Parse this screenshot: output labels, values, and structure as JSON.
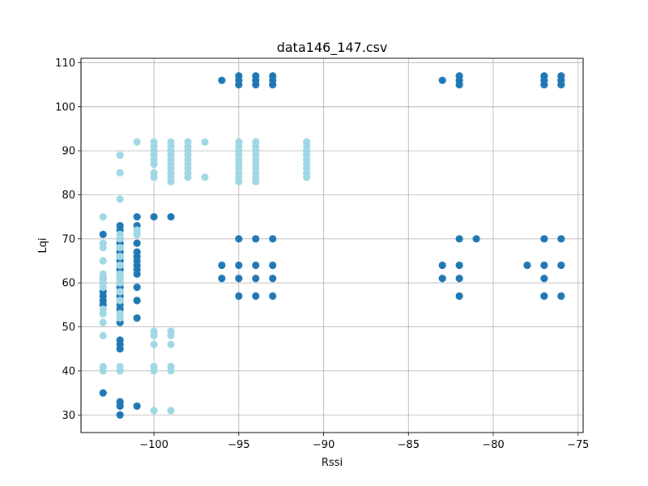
{
  "chart_data": {
    "type": "scatter",
    "title": "data146_147.csv",
    "xlabel": "Rssi",
    "ylabel": "Lqi",
    "xlim": [
      -104.3,
      -74.7
    ],
    "ylim": [
      26.0,
      111.0
    ],
    "xticks": [
      -100,
      -95,
      -90,
      -85,
      -80,
      -75
    ],
    "xtick_labels": [
      "−100",
      "−95",
      "−90",
      "−85",
      "−80",
      "−75"
    ],
    "yticks": [
      30,
      40,
      50,
      60,
      70,
      80,
      90,
      100,
      110
    ],
    "ytick_labels": [
      "30",
      "40",
      "50",
      "60",
      "70",
      "80",
      "90",
      "100",
      "110"
    ],
    "grid": true,
    "legend": "none",
    "series": [
      {
        "color": "#1f77b4",
        "points": [
          [
            -103,
            35
          ],
          [
            -103,
            55
          ],
          [
            -103,
            56
          ],
          [
            -103,
            57
          ],
          [
            -103,
            58
          ],
          [
            -103,
            60
          ],
          [
            -103,
            61
          ],
          [
            -103,
            71
          ],
          [
            -102,
            30
          ],
          [
            -102,
            32
          ],
          [
            -102,
            33
          ],
          [
            -102,
            45
          ],
          [
            -102,
            46
          ],
          [
            -102,
            47
          ],
          [
            -102,
            51
          ],
          [
            -102,
            52
          ],
          [
            -102,
            54
          ],
          [
            -102,
            55
          ],
          [
            -102,
            56
          ],
          [
            -102,
            57
          ],
          [
            -102,
            58
          ],
          [
            -102,
            59
          ],
          [
            -102,
            60
          ],
          [
            -102,
            61
          ],
          [
            -102,
            62
          ],
          [
            -102,
            63
          ],
          [
            -102,
            64
          ],
          [
            -102,
            65
          ],
          [
            -102,
            66
          ],
          [
            -102,
            67
          ],
          [
            -102,
            68
          ],
          [
            -102,
            69
          ],
          [
            -102,
            70
          ],
          [
            -102,
            72
          ],
          [
            -102,
            73
          ],
          [
            -101,
            32
          ],
          [
            -101,
            52
          ],
          [
            -101,
            56
          ],
          [
            -101,
            59
          ],
          [
            -101,
            62
          ],
          [
            -101,
            63
          ],
          [
            -101,
            64
          ],
          [
            -101,
            65
          ],
          [
            -101,
            66
          ],
          [
            -101,
            67
          ],
          [
            -101,
            69
          ],
          [
            -101,
            71
          ],
          [
            -101,
            73
          ],
          [
            -101,
            75
          ],
          [
            -100,
            75
          ],
          [
            -99,
            75
          ],
          [
            -96,
            61
          ],
          [
            -96,
            64
          ],
          [
            -96,
            106
          ],
          [
            -95,
            57
          ],
          [
            -95,
            61
          ],
          [
            -95,
            64
          ],
          [
            -95,
            70
          ],
          [
            -95,
            105
          ],
          [
            -95,
            106
          ],
          [
            -95,
            107
          ],
          [
            -94,
            57
          ],
          [
            -94,
            61
          ],
          [
            -94,
            64
          ],
          [
            -94,
            70
          ],
          [
            -94,
            105
          ],
          [
            -94,
            106
          ],
          [
            -94,
            107
          ],
          [
            -93,
            57
          ],
          [
            -93,
            61
          ],
          [
            -93,
            64
          ],
          [
            -93,
            70
          ],
          [
            -93,
            105
          ],
          [
            -93,
            106
          ],
          [
            -93,
            107
          ],
          [
            -83,
            61
          ],
          [
            -83,
            64
          ],
          [
            -83,
            106
          ],
          [
            -82,
            57
          ],
          [
            -82,
            61
          ],
          [
            -82,
            64
          ],
          [
            -82,
            70
          ],
          [
            -82,
            105
          ],
          [
            -82,
            106
          ],
          [
            -82,
            107
          ],
          [
            -81,
            70
          ],
          [
            -78,
            64
          ],
          [
            -77,
            57
          ],
          [
            -77,
            61
          ],
          [
            -77,
            64
          ],
          [
            -77,
            70
          ],
          [
            -77,
            105
          ],
          [
            -77,
            106
          ],
          [
            -77,
            107
          ],
          [
            -76,
            57
          ],
          [
            -76,
            64
          ],
          [
            -76,
            70
          ],
          [
            -76,
            105
          ],
          [
            -76,
            106
          ],
          [
            -76,
            107
          ]
        ]
      },
      {
        "color": "#9fd8e4",
        "points": [
          [
            -103,
            40
          ],
          [
            -103,
            41
          ],
          [
            -103,
            48
          ],
          [
            -103,
            51
          ],
          [
            -103,
            53
          ],
          [
            -103,
            54
          ],
          [
            -103,
            59
          ],
          [
            -103,
            60
          ],
          [
            -103,
            61
          ],
          [
            -103,
            62
          ],
          [
            -103,
            65
          ],
          [
            -103,
            68
          ],
          [
            -103,
            69
          ],
          [
            -103,
            75
          ],
          [
            -102,
            40
          ],
          [
            -102,
            41
          ],
          [
            -102,
            52
          ],
          [
            -102,
            53
          ],
          [
            -102,
            56
          ],
          [
            -102,
            58
          ],
          [
            -102,
            60
          ],
          [
            -102,
            61
          ],
          [
            -102,
            62
          ],
          [
            -102,
            64
          ],
          [
            -102,
            66
          ],
          [
            -102,
            68
          ],
          [
            -102,
            70
          ],
          [
            -102,
            71
          ],
          [
            -102,
            79
          ],
          [
            -102,
            85
          ],
          [
            -102,
            89
          ],
          [
            -101,
            71
          ],
          [
            -101,
            72
          ],
          [
            -101,
            92
          ],
          [
            -100,
            31
          ],
          [
            -100,
            40
          ],
          [
            -100,
            41
          ],
          [
            -100,
            46
          ],
          [
            -100,
            48
          ],
          [
            -100,
            49
          ],
          [
            -100,
            84
          ],
          [
            -100,
            85
          ],
          [
            -100,
            87
          ],
          [
            -100,
            88
          ],
          [
            -100,
            89
          ],
          [
            -100,
            90
          ],
          [
            -100,
            91
          ],
          [
            -100,
            92
          ],
          [
            -99,
            31
          ],
          [
            -99,
            40
          ],
          [
            -99,
            41
          ],
          [
            -99,
            46
          ],
          [
            -99,
            48
          ],
          [
            -99,
            49
          ],
          [
            -99,
            83
          ],
          [
            -99,
            84
          ],
          [
            -99,
            85
          ],
          [
            -99,
            86
          ],
          [
            -99,
            87
          ],
          [
            -99,
            88
          ],
          [
            -99,
            89
          ],
          [
            -99,
            90
          ],
          [
            -99,
            91
          ],
          [
            -99,
            92
          ],
          [
            -98,
            84
          ],
          [
            -98,
            85
          ],
          [
            -98,
            86
          ],
          [
            -98,
            87
          ],
          [
            -98,
            88
          ],
          [
            -98,
            89
          ],
          [
            -98,
            90
          ],
          [
            -98,
            91
          ],
          [
            -98,
            92
          ],
          [
            -97,
            84
          ],
          [
            -97,
            92
          ],
          [
            -95,
            83
          ],
          [
            -95,
            84
          ],
          [
            -95,
            85
          ],
          [
            -95,
            86
          ],
          [
            -95,
            87
          ],
          [
            -95,
            88
          ],
          [
            -95,
            89
          ],
          [
            -95,
            90
          ],
          [
            -95,
            91
          ],
          [
            -95,
            92
          ],
          [
            -94,
            83
          ],
          [
            -94,
            84
          ],
          [
            -94,
            85
          ],
          [
            -94,
            86
          ],
          [
            -94,
            87
          ],
          [
            -94,
            88
          ],
          [
            -94,
            89
          ],
          [
            -94,
            90
          ],
          [
            -94,
            91
          ],
          [
            -94,
            92
          ],
          [
            -91,
            84
          ],
          [
            -91,
            85
          ],
          [
            -91,
            86
          ],
          [
            -91,
            87
          ],
          [
            -91,
            88
          ],
          [
            -91,
            89
          ],
          [
            -91,
            90
          ],
          [
            -91,
            91
          ],
          [
            -91,
            92
          ]
        ]
      }
    ]
  }
}
